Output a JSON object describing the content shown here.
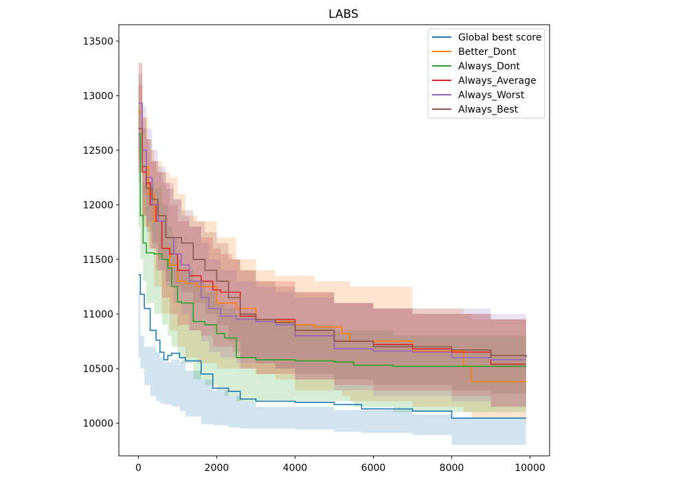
{
  "chart_data": {
    "type": "line",
    "title": "LABS",
    "xlabel": "",
    "ylabel": "",
    "xlim": [
      -500,
      10500
    ],
    "ylim": [
      9700,
      13650
    ],
    "xticks": [
      0,
      2000,
      4000,
      6000,
      8000,
      10000
    ],
    "xtick_labels": [
      "0",
      "2000",
      "4000",
      "6000",
      "8000",
      "10000"
    ],
    "yticks": [
      10000,
      10500,
      11000,
      11500,
      12000,
      12500,
      13000,
      13500
    ],
    "ytick_labels": [
      "10000",
      "10500",
      "11000",
      "11500",
      "12000",
      "12500",
      "13000",
      "13500"
    ],
    "legend_position": "top-right",
    "grid": false,
    "series": [
      {
        "name": "Global best score",
        "color": "#1f77b4",
        "x": [
          0,
          50,
          150,
          300,
          450,
          550,
          650,
          750,
          850,
          1050,
          1200,
          1600,
          1900,
          2300,
          2600,
          3000,
          4000,
          5000,
          5700,
          7000,
          8000,
          8500,
          9900
        ],
        "y": [
          11360,
          11180,
          11050,
          10850,
          10760,
          10650,
          10580,
          10620,
          10640,
          10600,
          10570,
          10450,
          10320,
          10290,
          10220,
          10200,
          10190,
          10170,
          10130,
          10110,
          10045,
          10045,
          10045
        ],
        "upper": [
          11200,
          10800,
          10700,
          10700,
          10650,
          10600,
          10560,
          10560,
          10580,
          10560,
          10480,
          10400,
          10300,
          10250,
          10200,
          10150,
          10150,
          10120,
          10120,
          10080,
          10050,
          10050,
          10050
        ],
        "lower": [
          10600,
          10500,
          10350,
          10250,
          10200,
          10180,
          10170,
          10170,
          10150,
          10110,
          10060,
          9990,
          9980,
          9960,
          9950,
          9950,
          9940,
          9920,
          9910,
          9890,
          9800,
          9800,
          9800
        ]
      },
      {
        "name": "Better_Dont",
        "color": "#ff7f0e",
        "x": [
          0,
          100,
          250,
          400,
          600,
          800,
          1000,
          1200,
          1500,
          2000,
          2500,
          3000,
          3500,
          4000,
          4500,
          5200,
          5400,
          7000,
          8300,
          8500,
          9900
        ],
        "y": [
          12850,
          12350,
          12100,
          11850,
          11600,
          11450,
          11300,
          11280,
          11250,
          11100,
          11050,
          10950,
          10930,
          10900,
          10880,
          10820,
          10750,
          10660,
          10520,
          10380,
          10380
        ],
        "upper": [
          13300,
          12800,
          12500,
          12400,
          12300,
          12250,
          12100,
          11900,
          11850,
          11700,
          11500,
          11400,
          11350,
          11350,
          11300,
          11300,
          11250,
          11050,
          11000,
          10950,
          10950
        ],
        "lower": [
          12400,
          11800,
          11600,
          11250,
          11000,
          10850,
          10700,
          10600,
          10550,
          10500,
          10500,
          10450,
          10400,
          10300,
          10300,
          10250,
          10200,
          10150,
          10100,
          10050,
          10050
        ]
      },
      {
        "name": "Always_Dont",
        "color": "#2ca02c",
        "x": [
          0,
          50,
          120,
          200,
          400,
          600,
          750,
          850,
          1000,
          1100,
          1400,
          1700,
          2000,
          2200,
          2500,
          3000,
          4000,
          5000,
          5500,
          6500,
          8000,
          9900
        ],
        "y": [
          12650,
          11900,
          11650,
          11560,
          11550,
          11500,
          11420,
          11250,
          11110,
          11100,
          10930,
          10900,
          10820,
          10780,
          10600,
          10580,
          10570,
          10560,
          10530,
          10520,
          10520,
          10520
        ],
        "upper": [
          12900,
          12200,
          12200,
          12200,
          12150,
          12000,
          11800,
          11700,
          11500,
          11400,
          11300,
          11200,
          11100,
          11050,
          11000,
          10950,
          10900,
          10850,
          10850,
          10800,
          10800,
          10800
        ],
        "lower": [
          11800,
          11500,
          11300,
          11100,
          11000,
          10900,
          10800,
          10700,
          10600,
          10550,
          10400,
          10350,
          10300,
          10250,
          10200,
          10200,
          10200,
          10200,
          10150,
          10100,
          10100,
          10100
        ]
      },
      {
        "name": "Always_Average",
        "color": "#d62728",
        "x": [
          0,
          100,
          200,
          300,
          450,
          600,
          800,
          1000,
          1300,
          1600,
          1900,
          2100,
          2400,
          2600,
          3000,
          4000,
          5000,
          6000,
          7000,
          8000,
          9000,
          9900
        ],
        "y": [
          12700,
          12300,
          12200,
          12000,
          11850,
          11600,
          11550,
          11400,
          11350,
          11300,
          11220,
          11200,
          11200,
          10980,
          10950,
          10800,
          10750,
          10720,
          10680,
          10650,
          10540,
          10540
        ],
        "upper": [
          13100,
          12700,
          12600,
          12400,
          12300,
          12200,
          12000,
          11850,
          11800,
          11700,
          11600,
          11550,
          11500,
          11400,
          11300,
          11200,
          11100,
          11050,
          11000,
          11000,
          10950,
          10950
        ],
        "lower": [
          12300,
          11900,
          11800,
          11600,
          11400,
          11150,
          11000,
          10900,
          10850,
          10800,
          10700,
          10700,
          10650,
          10500,
          10450,
          10400,
          10350,
          10300,
          10300,
          10250,
          10150,
          10150
        ]
      },
      {
        "name": "Always_Worst",
        "color": "#9467bd",
        "x": [
          0,
          100,
          200,
          350,
          500,
          700,
          900,
          1100,
          1300,
          1600,
          1800,
          2100,
          2500,
          3000,
          3500,
          4000,
          5000,
          6000,
          7000,
          8000,
          9000,
          9900
        ],
        "y": [
          12930,
          12500,
          12250,
          12000,
          11850,
          11700,
          11550,
          11450,
          11300,
          11150,
          11050,
          10980,
          10950,
          10930,
          10900,
          10800,
          10680,
          10660,
          10650,
          10600,
          10580,
          10580
        ],
        "upper": [
          13300,
          12900,
          12700,
          12500,
          12350,
          12200,
          12050,
          11900,
          11800,
          11650,
          11500,
          11400,
          11300,
          11250,
          11200,
          11150,
          11100,
          11050,
          11050,
          11050,
          11000,
          11000
        ],
        "lower": [
          12500,
          12100,
          11850,
          11600,
          11400,
          11250,
          11100,
          11000,
          10850,
          10750,
          10650,
          10600,
          10550,
          10550,
          10500,
          10400,
          10300,
          10250,
          10250,
          10200,
          10150,
          10150
        ]
      },
      {
        "name": "Always_Best",
        "color": "#8c564b",
        "x": [
          0,
          100,
          200,
          350,
          500,
          700,
          900,
          1100,
          1400,
          1700,
          2000,
          2300,
          2600,
          3000,
          3500,
          4000,
          5000,
          6000,
          7000,
          8000,
          9000,
          9900
        ],
        "y": [
          12700,
          12350,
          12150,
          12050,
          11900,
          11700,
          11700,
          11650,
          11500,
          11400,
          11300,
          11150,
          11000,
          10950,
          10920,
          10850,
          10750,
          10700,
          10700,
          10670,
          10620,
          10600
        ],
        "upper": [
          13200,
          12800,
          12600,
          12400,
          12300,
          12150,
          12050,
          11950,
          11850,
          11750,
          11650,
          11500,
          11400,
          11300,
          11250,
          11200,
          11100,
          11050,
          11000,
          11000,
          10950,
          10950
        ],
        "lower": [
          12200,
          11900,
          11750,
          11650,
          11500,
          11300,
          11250,
          11200,
          11100,
          11000,
          10900,
          10750,
          10600,
          10550,
          10500,
          10450,
          10400,
          10350,
          10350,
          10300,
          10270,
          10270
        ]
      }
    ]
  }
}
